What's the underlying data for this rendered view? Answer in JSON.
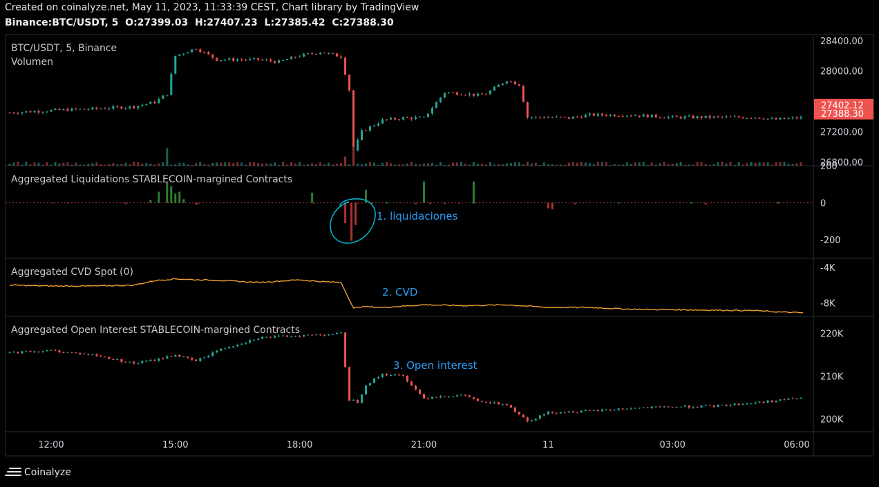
{
  "header": {
    "created_line": "Created on coinalyze.net, May 11, 2023, 11:33:39 CEST, Chart library by TradingView",
    "symbol": "Binance:BTC/USDT, 5",
    "o_label": "O:",
    "o_value": "27399.03",
    "h_label": "H:",
    "h_value": "27407.23",
    "l_label": "L:",
    "l_value": "27385.42",
    "c_label": "C:",
    "c_value": "27388.30"
  },
  "colors": {
    "up": "#26a69a",
    "down": "#ef5350",
    "cvd_line": "#f0a030",
    "annotation": "#2a9df4",
    "circle": "#00bcd4",
    "grid": "#2a2e39",
    "axis_text": "#d1d4dc"
  },
  "annotations": {
    "liq": "1. liquidaciones",
    "cvd": "2. CVD",
    "oi": "3. Open interest"
  },
  "footer": {
    "brand": "Coinalyze",
    "icon": "menu-lines-icon"
  },
  "chart_data": [
    {
      "type": "candlestick",
      "pane": "price",
      "title": "BTC/USDT, 5, Binance",
      "subtitle": "Volumen",
      "y_ticks": [
        "28400.00",
        "28000.00",
        "27200.00",
        "26800.00"
      ],
      "ylim": [
        26750,
        28480
      ],
      "price_labels": [
        "27402.12",
        "27388.30"
      ],
      "x": [
        11.0,
        12.0,
        13.0,
        14.0,
        14.5,
        14.8,
        15.0,
        15.5,
        16.0,
        17.0,
        17.5,
        18.0,
        18.5,
        19.0,
        19.2,
        19.3,
        19.5,
        20.0,
        20.5,
        21.0,
        21.5,
        22.0,
        22.3,
        22.5,
        23.0,
        23.3,
        23.5,
        24.0,
        24.5,
        25.0,
        26.0,
        27.0,
        28.0,
        29.0,
        29.5,
        30.0,
        30.2
      ],
      "close": [
        27450,
        27480,
        27500,
        27530,
        27590,
        27700,
        28200,
        28300,
        28150,
        28150,
        28120,
        28200,
        28250,
        28190,
        27750,
        26950,
        27200,
        27350,
        27380,
        27380,
        27720,
        27700,
        27680,
        27700,
        27880,
        27820,
        27390,
        27390,
        27380,
        27420,
        27420,
        27390,
        27390,
        27390,
        27360,
        27380,
        27388
      ],
      "volume_spikes": [
        {
          "x": 14.8,
          "v": 0.85,
          "dir": "up"
        },
        {
          "x": 19.3,
          "v": 0.92,
          "dir": "down"
        },
        {
          "x": 19.1,
          "v": 0.45,
          "dir": "down"
        }
      ]
    },
    {
      "type": "bar",
      "pane": "liquidations",
      "title": "Aggregated Liquidations STABLECOIN-margined Contracts",
      "y_ticks": [
        "200",
        "0",
        "-200"
      ],
      "ylim": [
        -300,
        200
      ],
      "bars": [
        {
          "x": 14.4,
          "v": 15
        },
        {
          "x": 14.6,
          "v": 60
        },
        {
          "x": 14.8,
          "v": 110
        },
        {
          "x": 14.9,
          "v": 90
        },
        {
          "x": 15.0,
          "v": 50
        },
        {
          "x": 15.1,
          "v": 60
        },
        {
          "x": 15.2,
          "v": 20
        },
        {
          "x": 15.5,
          "v": -10
        },
        {
          "x": 18.3,
          "v": 55
        },
        {
          "x": 19.1,
          "v": -110
        },
        {
          "x": 19.25,
          "v": -205
        },
        {
          "x": 19.35,
          "v": -120
        },
        {
          "x": 19.6,
          "v": 70
        },
        {
          "x": 21.0,
          "v": 115
        },
        {
          "x": 22.2,
          "v": 115
        },
        {
          "x": 24.0,
          "v": -30
        },
        {
          "x": 24.1,
          "v": -35
        }
      ]
    },
    {
      "type": "line",
      "pane": "cvd",
      "title": "Aggregated CVD Spot (0)",
      "y_ticks": [
        "-4K",
        "-8K"
      ],
      "ylim": [
        -9500,
        -3000
      ],
      "x": [
        11.0,
        12.0,
        13.0,
        14.0,
        14.5,
        15.0,
        15.5,
        16.0,
        17.0,
        18.0,
        18.5,
        19.0,
        19.3,
        19.5,
        20.0,
        21.0,
        22.0,
        23.0,
        24.0,
        25.0,
        26.0,
        27.0,
        28.0,
        29.0,
        29.5,
        30.2
      ],
      "y": [
        -6000,
        -6100,
        -6100,
        -6000,
        -5500,
        -5300,
        -5400,
        -5450,
        -5700,
        -5400,
        -5600,
        -5700,
        -8600,
        -8400,
        -8500,
        -8200,
        -8300,
        -8200,
        -8500,
        -8500,
        -8700,
        -8750,
        -8800,
        -8850,
        -9000,
        -9100
      ]
    },
    {
      "type": "candlestick",
      "pane": "open_interest",
      "title": "Aggregated Open Interest STABLECOIN-margined Contracts",
      "y_ticks": [
        "220K",
        "210K",
        "200K"
      ],
      "ylim": [
        197000,
        224000
      ],
      "x": [
        11.0,
        12.0,
        13.0,
        14.0,
        14.5,
        15.0,
        15.5,
        16.0,
        17.0,
        18.0,
        19.0,
        19.2,
        19.4,
        19.6,
        20.0,
        20.5,
        21.0,
        21.2,
        22.0,
        22.4,
        23.0,
        23.5,
        24.0,
        25.0,
        26.0,
        27.0,
        28.0,
        29.0,
        30.0,
        30.2
      ],
      "close": [
        215500,
        216000,
        215000,
        213000,
        213800,
        215000,
        213500,
        216000,
        219000,
        219500,
        220000,
        204500,
        204000,
        208000,
        210500,
        210000,
        204800,
        205200,
        205500,
        203800,
        203500,
        199500,
        201500,
        201800,
        202500,
        202800,
        203000,
        203800,
        204800,
        205000
      ]
    }
  ],
  "x_axis": {
    "labels": [
      "12:00",
      "15:00",
      "18:00",
      "21:00",
      "11",
      "03:00",
      "06:00"
    ],
    "values": [
      12.0,
      15.0,
      18.0,
      21.0,
      24.0,
      27.0,
      30.0
    ]
  }
}
